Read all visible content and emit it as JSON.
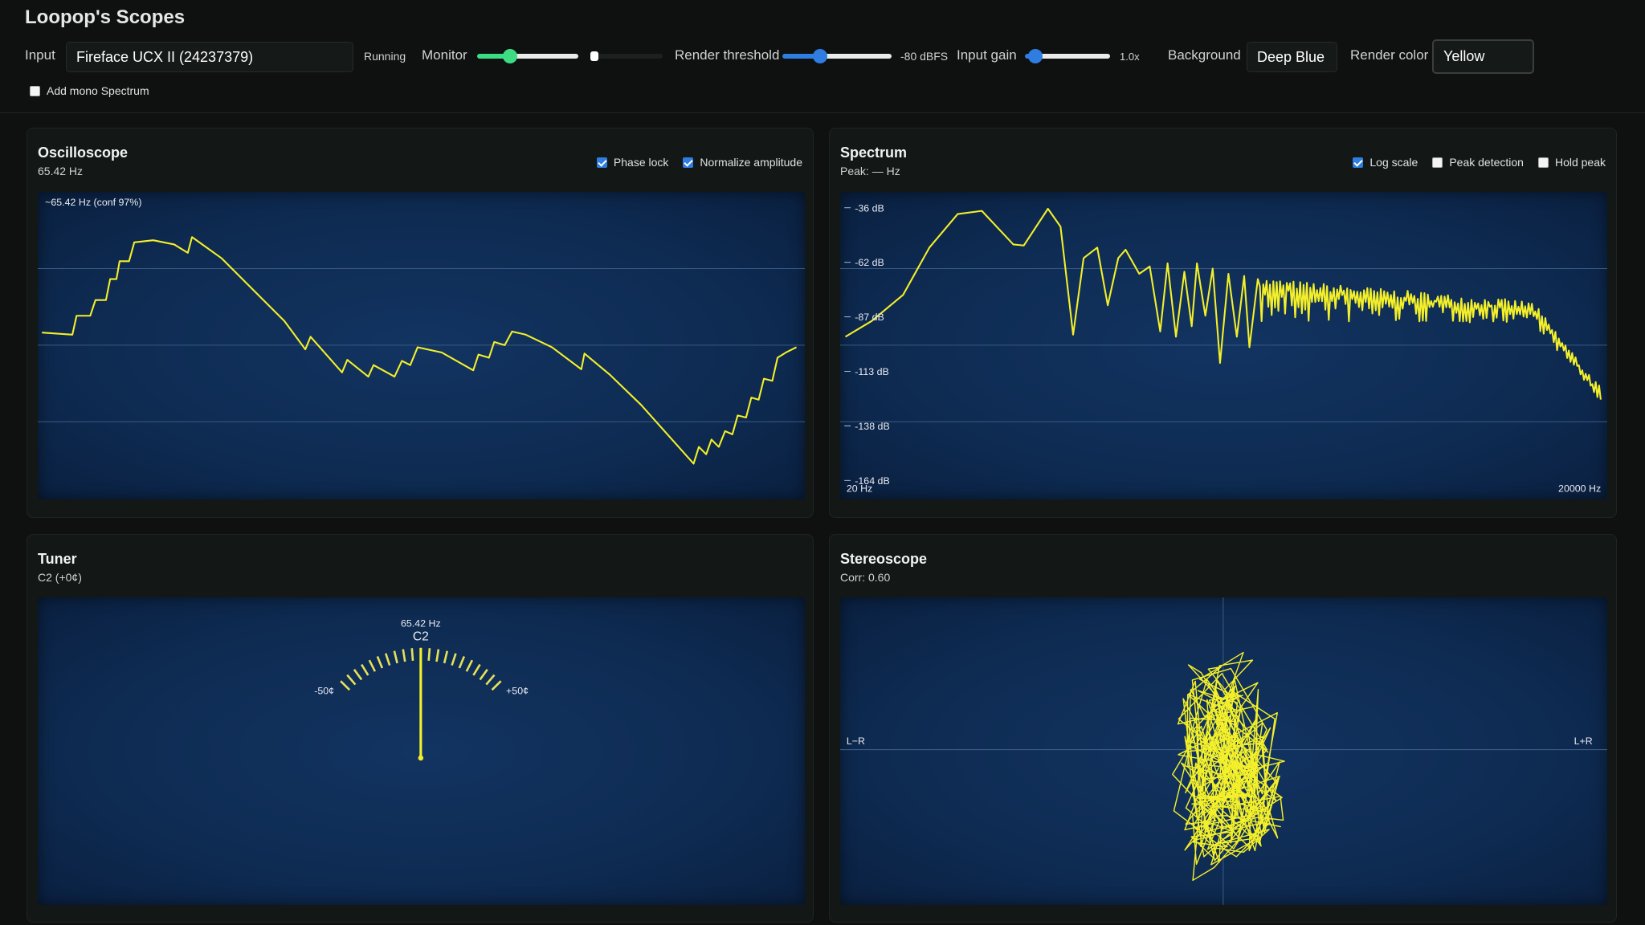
{
  "header": {
    "title": "Loopop's Scopes",
    "input_label": "Input",
    "input_device": "Fireface UCX II (24237379)",
    "status": "Running",
    "monitor_label": "Monitor",
    "render_threshold_label": "Render threshold",
    "render_threshold_value": "-80 dBFS",
    "input_gain_label": "Input gain",
    "input_gain_value": "1.0x",
    "background_label": "Background",
    "background_value": "Deep Blue",
    "render_color_label": "Render color",
    "render_color_value": "Yellow",
    "mono_option": {
      "label": "Add mono Spectrum",
      "checked": false
    }
  },
  "oscilloscope": {
    "title": "Oscilloscope",
    "subtitle": "65.42 Hz",
    "readout": "~65.42 Hz (conf 97%)",
    "options": [
      {
        "label": "Phase lock",
        "checked": true
      },
      {
        "label": "Normalize amplitude",
        "checked": true
      }
    ]
  },
  "spectrum": {
    "title": "Spectrum",
    "subtitle": "Peak: — Hz",
    "options": [
      {
        "label": "Log scale",
        "checked": true
      },
      {
        "label": "Peak detection",
        "checked": false
      },
      {
        "label": "Hold peak",
        "checked": false
      }
    ],
    "level_labels": [
      "-36 dB",
      "-62 dB",
      "-87 dB",
      "-113 dB",
      "-138 dB",
      "-164 dB"
    ],
    "freq_min_label": "20 Hz",
    "freq_max_label": "20000 Hz"
  },
  "tuner": {
    "title": "Tuner",
    "subtitle": "C2 (+0¢)",
    "frequency": "65.42 Hz",
    "note": "C2",
    "min_label": "-50¢",
    "max_label": "+50¢"
  },
  "stereoscope": {
    "title": "Stereoscope",
    "subtitle": "Corr: 0.60",
    "side_label": "L−R",
    "mid_label": "L+R"
  }
}
